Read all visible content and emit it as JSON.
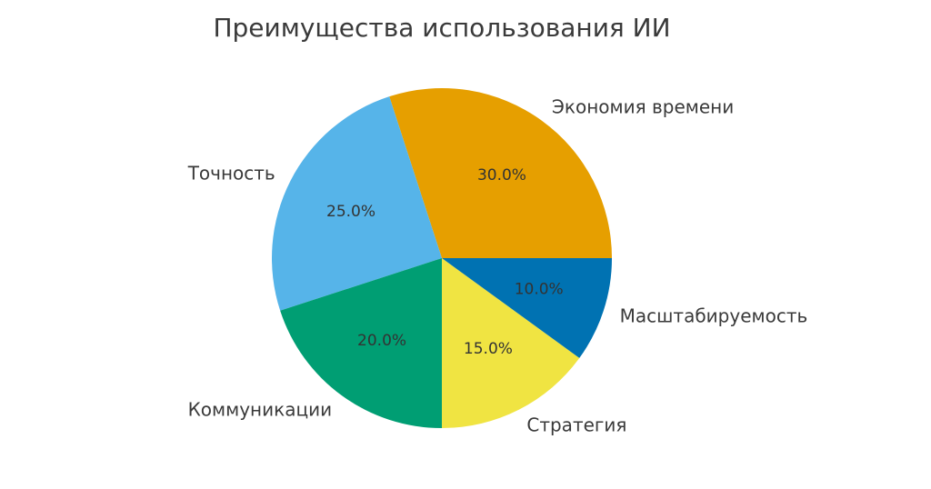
{
  "chart_data": {
    "type": "pie",
    "title": "Преимущества использования ИИ",
    "start_angle_deg": 0,
    "direction": "counterclockwise",
    "legend": "none",
    "slices": [
      {
        "label": "Экономия времени",
        "value": 30,
        "pct_label": "30.0%",
        "color": "#E69F00"
      },
      {
        "label": "Точность",
        "value": 25,
        "pct_label": "25.0%",
        "color": "#56B4E9"
      },
      {
        "label": "Коммуникации",
        "value": 20,
        "pct_label": "20.0%",
        "color": "#009E73"
      },
      {
        "label": "Стратегия",
        "value": 15,
        "pct_label": "15.0%",
        "color": "#F0E442"
      },
      {
        "label": "Масштабируемость",
        "value": 10,
        "pct_label": "10.0%",
        "color": "#0072B2"
      }
    ]
  }
}
